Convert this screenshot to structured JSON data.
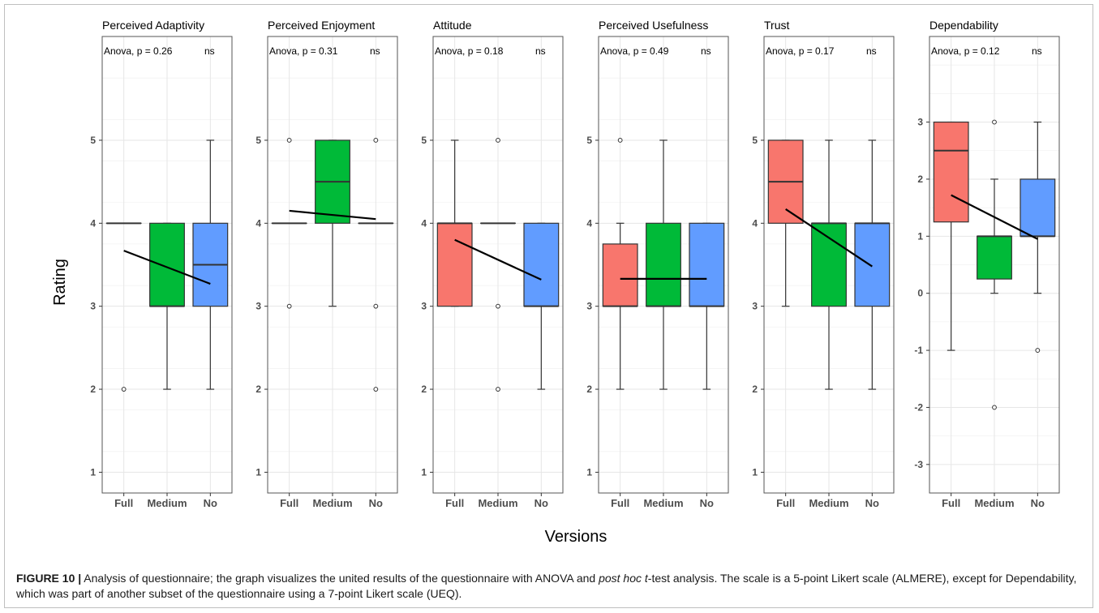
{
  "figure": {
    "ylabel": "Rating",
    "xlabel": "Versions",
    "caption": {
      "label": "FIGURE 10 |",
      "part1": " Analysis of questionnaire; the graph visualizes the united results of the questionnaire with ANOVA and ",
      "italic1": "post hoc t",
      "part2": "-test analysis. The scale is a 5-point Likert scale (ALMERE), except for Dependability, which was part of another subset of the questionnaire using a 7-point Likert scale (UEQ)."
    },
    "colors": {
      "Full": "#f8766d",
      "Medium": "#00ba38",
      "No": "#619cff"
    }
  },
  "chart_data": [
    {
      "type": "box",
      "title": "Perceived Adaptivity",
      "annotation": "Anova, p = 0.26",
      "significance": "ns",
      "categories": [
        "Full",
        "Medium",
        "No"
      ],
      "yticks": [
        1,
        2,
        3,
        4,
        5
      ],
      "ylim": [
        0.75,
        6.25
      ],
      "boxes": [
        {
          "name": "Full",
          "min": 4,
          "q1": 4,
          "median": 4,
          "q3": 4,
          "max": 4,
          "outliers": [
            2
          ]
        },
        {
          "name": "Medium",
          "min": 2,
          "q1": 3,
          "median": 3,
          "q3": 4,
          "max": 4,
          "outliers": []
        },
        {
          "name": "No",
          "min": 2,
          "q1": 3,
          "median": 3.5,
          "q3": 4,
          "max": 5,
          "outliers": []
        }
      ],
      "mean_line": [
        3.67,
        3.27
      ]
    },
    {
      "type": "box",
      "title": "Perceived Enjoyment",
      "annotation": "Anova, p = 0.31",
      "significance": "ns",
      "categories": [
        "Full",
        "Medium",
        "No"
      ],
      "yticks": [
        1,
        2,
        3,
        4,
        5
      ],
      "ylim": [
        0.75,
        6.25
      ],
      "boxes": [
        {
          "name": "Full",
          "min": 4,
          "q1": 4,
          "median": 4,
          "q3": 4,
          "max": 4,
          "outliers": [
            5,
            3
          ]
        },
        {
          "name": "Medium",
          "min": 3,
          "q1": 4,
          "median": 4.5,
          "q3": 5,
          "max": 5,
          "outliers": []
        },
        {
          "name": "No",
          "min": 4,
          "q1": 4,
          "median": 4,
          "q3": 4,
          "max": 4,
          "outliers": [
            5,
            3,
            2
          ]
        }
      ],
      "mean_line": [
        4.15,
        4.05
      ]
    },
    {
      "type": "box",
      "title": "Attitude",
      "annotation": "Anova, p = 0.18",
      "significance": "ns",
      "categories": [
        "Full",
        "Medium",
        "No"
      ],
      "yticks": [
        1,
        2,
        3,
        4,
        5
      ],
      "ylim": [
        0.75,
        6.25
      ],
      "boxes": [
        {
          "name": "Full",
          "min": 3,
          "q1": 3,
          "median": 4,
          "q3": 4,
          "max": 5,
          "outliers": []
        },
        {
          "name": "Medium",
          "min": 4,
          "q1": 4,
          "median": 4,
          "q3": 4,
          "max": 4,
          "outliers": [
            5,
            3,
            2
          ]
        },
        {
          "name": "No",
          "min": 2,
          "q1": 3,
          "median": 3,
          "q3": 4,
          "max": 4,
          "outliers": []
        }
      ],
      "mean_line": [
        3.8,
        3.32
      ]
    },
    {
      "type": "box",
      "title": "Perceived Usefulness",
      "annotation": "Anova, p = 0.49",
      "significance": "ns",
      "categories": [
        "Full",
        "Medium",
        "No"
      ],
      "yticks": [
        1,
        2,
        3,
        4,
        5
      ],
      "ylim": [
        0.75,
        6.25
      ],
      "boxes": [
        {
          "name": "Full",
          "min": 2,
          "q1": 3,
          "median": 3,
          "q3": 3.75,
          "max": 4,
          "outliers": [
            5
          ]
        },
        {
          "name": "Medium",
          "min": 2,
          "q1": 3,
          "median": 3,
          "q3": 4,
          "max": 5,
          "outliers": []
        },
        {
          "name": "No",
          "min": 2,
          "q1": 3,
          "median": 3,
          "q3": 4,
          "max": 4,
          "outliers": []
        }
      ],
      "mean_line": [
        3.33,
        3.33
      ]
    },
    {
      "type": "box",
      "title": "Trust",
      "annotation": "Anova, p = 0.17",
      "significance": "ns",
      "categories": [
        "Full",
        "Medium",
        "No"
      ],
      "yticks": [
        1,
        2,
        3,
        4,
        5
      ],
      "ylim": [
        0.75,
        6.25
      ],
      "boxes": [
        {
          "name": "Full",
          "min": 3,
          "q1": 4,
          "median": 4.5,
          "q3": 5,
          "max": 5,
          "outliers": []
        },
        {
          "name": "Medium",
          "min": 2,
          "q1": 3,
          "median": 4,
          "q3": 4,
          "max": 5,
          "outliers": []
        },
        {
          "name": "No",
          "min": 2,
          "q1": 3,
          "median": 4,
          "q3": 4,
          "max": 5,
          "outliers": []
        }
      ],
      "mean_line": [
        4.17,
        3.48
      ]
    },
    {
      "type": "box",
      "title": "Dependability",
      "annotation": "Anova, p = 0.12",
      "significance": "ns",
      "categories": [
        "Full",
        "Medium",
        "No"
      ],
      "yticks": [
        -3,
        -2,
        -1,
        0,
        1,
        2,
        3
      ],
      "ylim": [
        -3.5,
        4.5
      ],
      "boxes": [
        {
          "name": "Full",
          "min": -1,
          "q1": 1.25,
          "median": 2.5,
          "q3": 3,
          "max": 3,
          "outliers": []
        },
        {
          "name": "Medium",
          "min": 0,
          "q1": 0.25,
          "median": 1,
          "q3": 1,
          "max": 2,
          "outliers": [
            3,
            -2
          ]
        },
        {
          "name": "No",
          "min": 0,
          "q1": 1,
          "median": 1,
          "q3": 2,
          "max": 3,
          "outliers": [
            -1
          ]
        }
      ],
      "mean_line": [
        1.72,
        0.95
      ]
    }
  ]
}
